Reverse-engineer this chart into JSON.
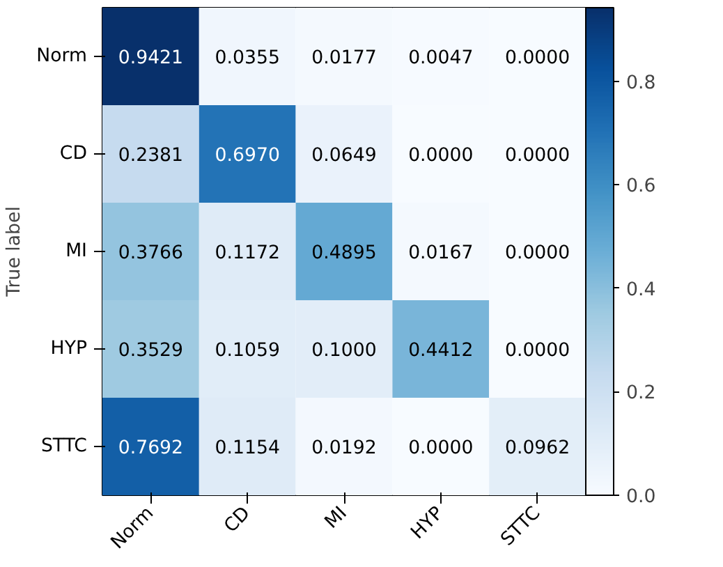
{
  "chart_data": {
    "type": "heatmap",
    "ylabel": "True label",
    "categories": [
      "Norm",
      "CD",
      "MI",
      "HYP",
      "STTC"
    ],
    "y_categories": [
      "Norm",
      "CD",
      "MI",
      "HYP",
      "STTC"
    ],
    "cells": [
      [
        0.9421,
        0.0355,
        0.0177,
        0.0047,
        0.0
      ],
      [
        0.2381,
        0.697,
        0.0649,
        0.0,
        0.0
      ],
      [
        0.3766,
        0.1172,
        0.4895,
        0.0167,
        0.0
      ],
      [
        0.3529,
        0.1059,
        0.1,
        0.4412,
        0.0
      ],
      [
        0.7692,
        0.1154,
        0.0192,
        0.0,
        0.0962
      ]
    ],
    "cell_labels": [
      [
        "0.9421",
        "0.0355",
        "0.0177",
        "0.0047",
        "0.0000"
      ],
      [
        "0.2381",
        "0.6970",
        "0.0649",
        "0.0000",
        "0.0000"
      ],
      [
        "0.3766",
        "0.1172",
        "0.4895",
        "0.0167",
        "0.0000"
      ],
      [
        "0.3529",
        "0.1059",
        "0.1000",
        "0.4412",
        "0.0000"
      ],
      [
        "0.7692",
        "0.1154",
        "0.0192",
        "0.0000",
        "0.0962"
      ]
    ],
    "data_labels": true,
    "clim": [
      0,
      0.9421
    ],
    "cticks": [
      {
        "value": 0,
        "label": "0.0"
      },
      0.2,
      0.4,
      0.6,
      0.8
    ]
  }
}
